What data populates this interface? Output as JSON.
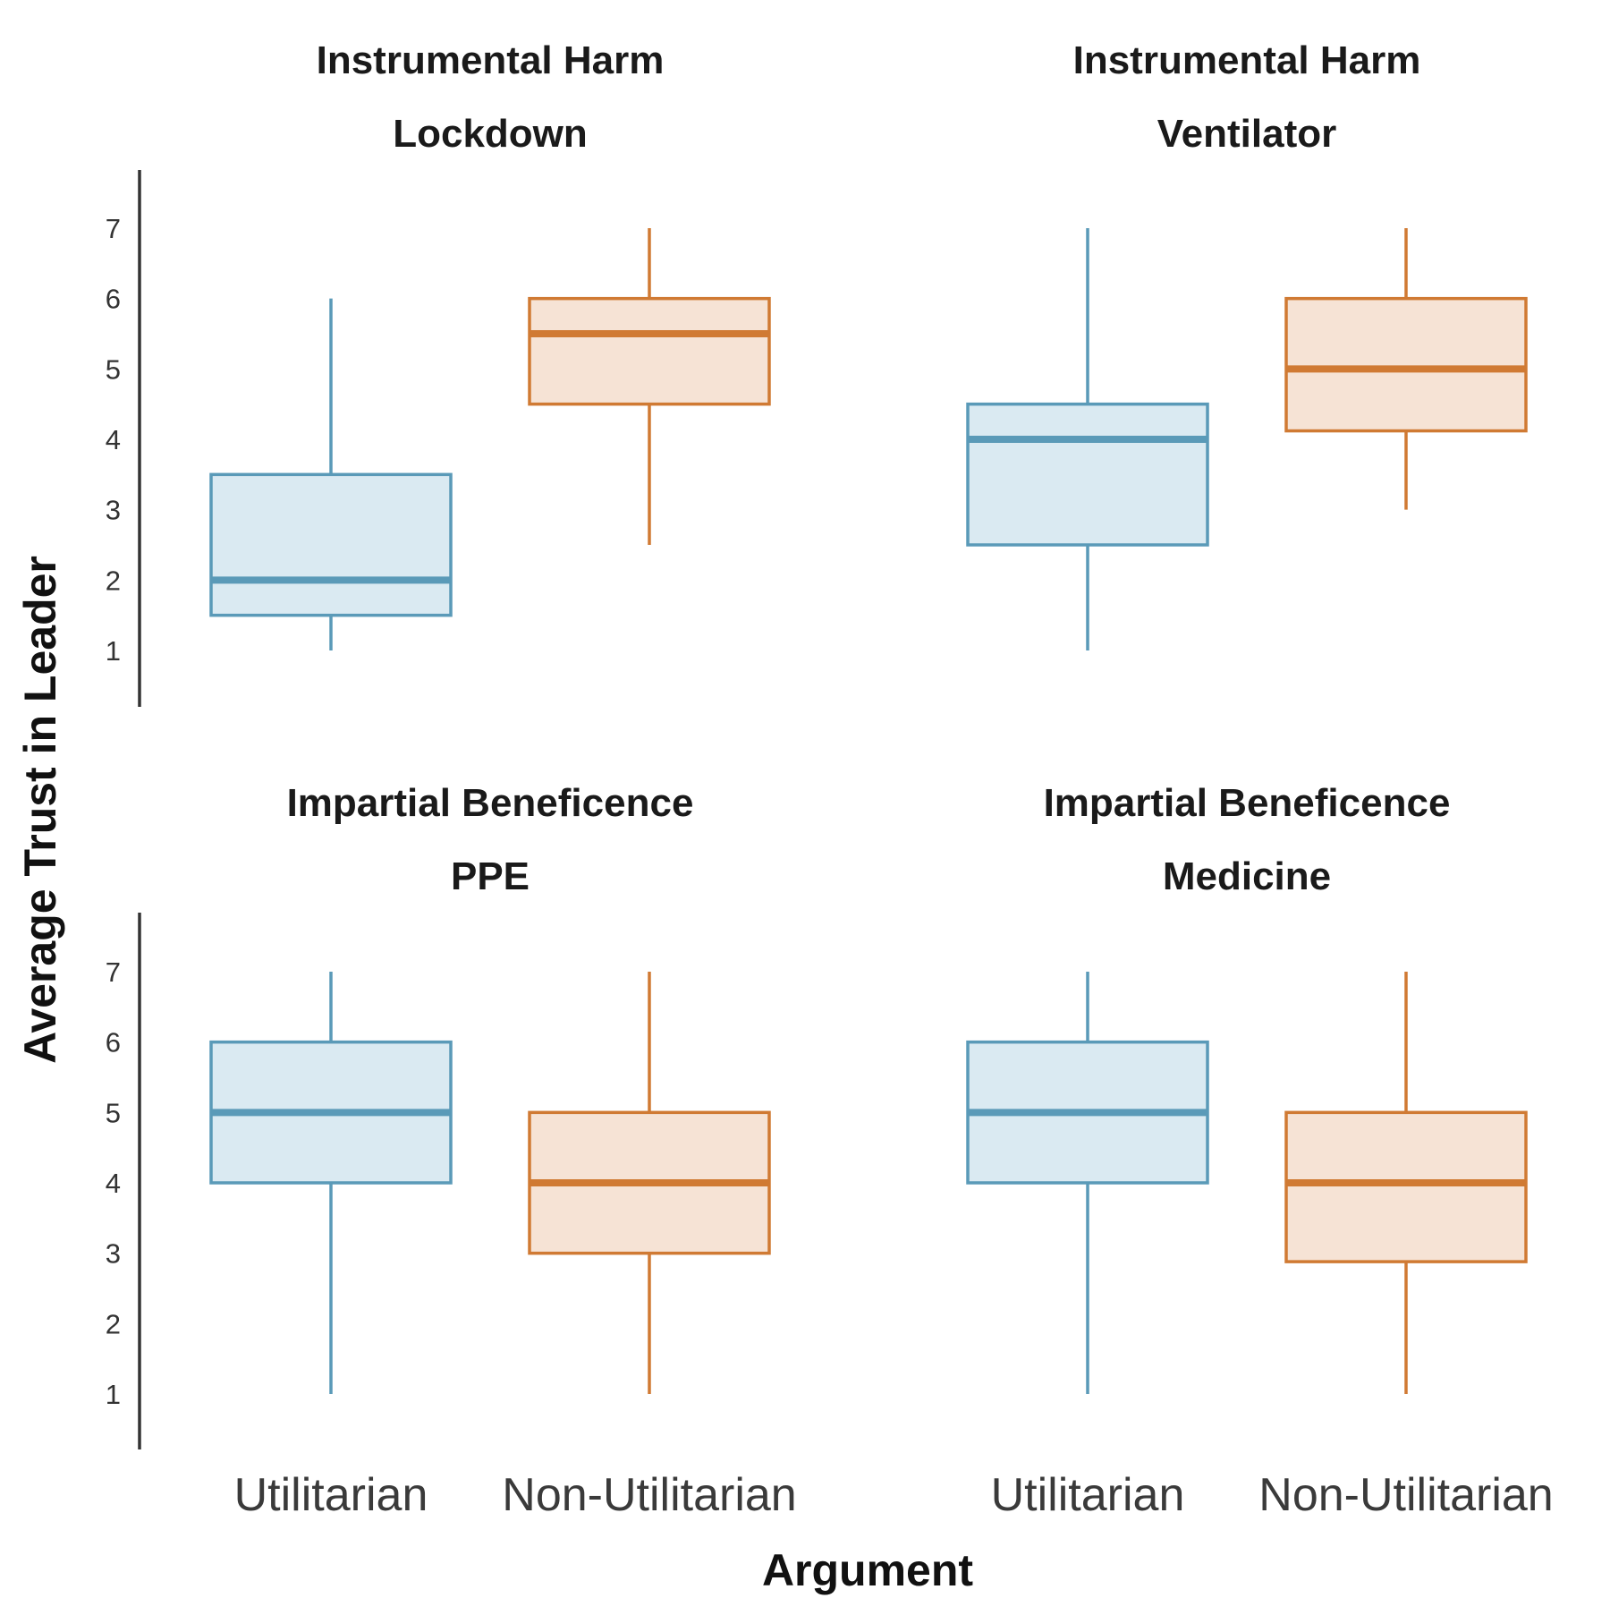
{
  "chart_data": {
    "type": "box",
    "xlabel": "Argument",
    "ylabel": "Average Trust in Leader",
    "yticks": [
      1,
      2,
      3,
      4,
      5,
      6,
      7
    ],
    "ylim": [
      0.2,
      7.8
    ],
    "categories": [
      "Utilitarian",
      "Non-Utilitarian"
    ],
    "colors": {
      "Utilitarian": {
        "line": "#5a9ab8",
        "fill": "#daeaf2"
      },
      "Non-Utilitarian": {
        "line": "#d07a33",
        "fill": "#f6e3d5"
      },
      "axis": "#333333"
    },
    "panels": [
      {
        "title_line1": "Instrumental Harm",
        "title_line2": "Lockdown",
        "boxes": [
          {
            "category": "Utilitarian",
            "whisker_low": 1.0,
            "q1": 1.5,
            "median": 2.0,
            "q3": 3.5,
            "whisker_high": 6.0
          },
          {
            "category": "Non-Utilitarian",
            "whisker_low": 2.5,
            "q1": 4.5,
            "median": 5.5,
            "q3": 6.0,
            "whisker_high": 7.0
          }
        ]
      },
      {
        "title_line1": "Instrumental Harm",
        "title_line2": "Ventilator",
        "boxes": [
          {
            "category": "Utilitarian",
            "whisker_low": 1.0,
            "q1": 2.5,
            "median": 4.0,
            "q3": 4.5,
            "whisker_high": 7.0
          },
          {
            "category": "Non-Utilitarian",
            "whisker_low": 3.0,
            "q1": 4.12,
            "median": 5.0,
            "q3": 6.0,
            "whisker_high": 7.0
          }
        ]
      },
      {
        "title_line1": "Impartial Beneficence",
        "title_line2": "PPE",
        "boxes": [
          {
            "category": "Utilitarian",
            "whisker_low": 1.0,
            "q1": 4.0,
            "median": 5.0,
            "q3": 6.0,
            "whisker_high": 7.0
          },
          {
            "category": "Non-Utilitarian",
            "whisker_low": 1.0,
            "q1": 3.0,
            "median": 4.0,
            "q3": 5.0,
            "whisker_high": 7.0
          }
        ]
      },
      {
        "title_line1": "Impartial Beneficence",
        "title_line2": "Medicine",
        "boxes": [
          {
            "category": "Utilitarian",
            "whisker_low": 1.0,
            "q1": 4.0,
            "median": 5.0,
            "q3": 6.0,
            "whisker_high": 7.0
          },
          {
            "category": "Non-Utilitarian",
            "whisker_low": 1.0,
            "q1": 2.88,
            "median": 4.0,
            "q3": 5.0,
            "whisker_high": 7.0
          }
        ]
      }
    ]
  }
}
